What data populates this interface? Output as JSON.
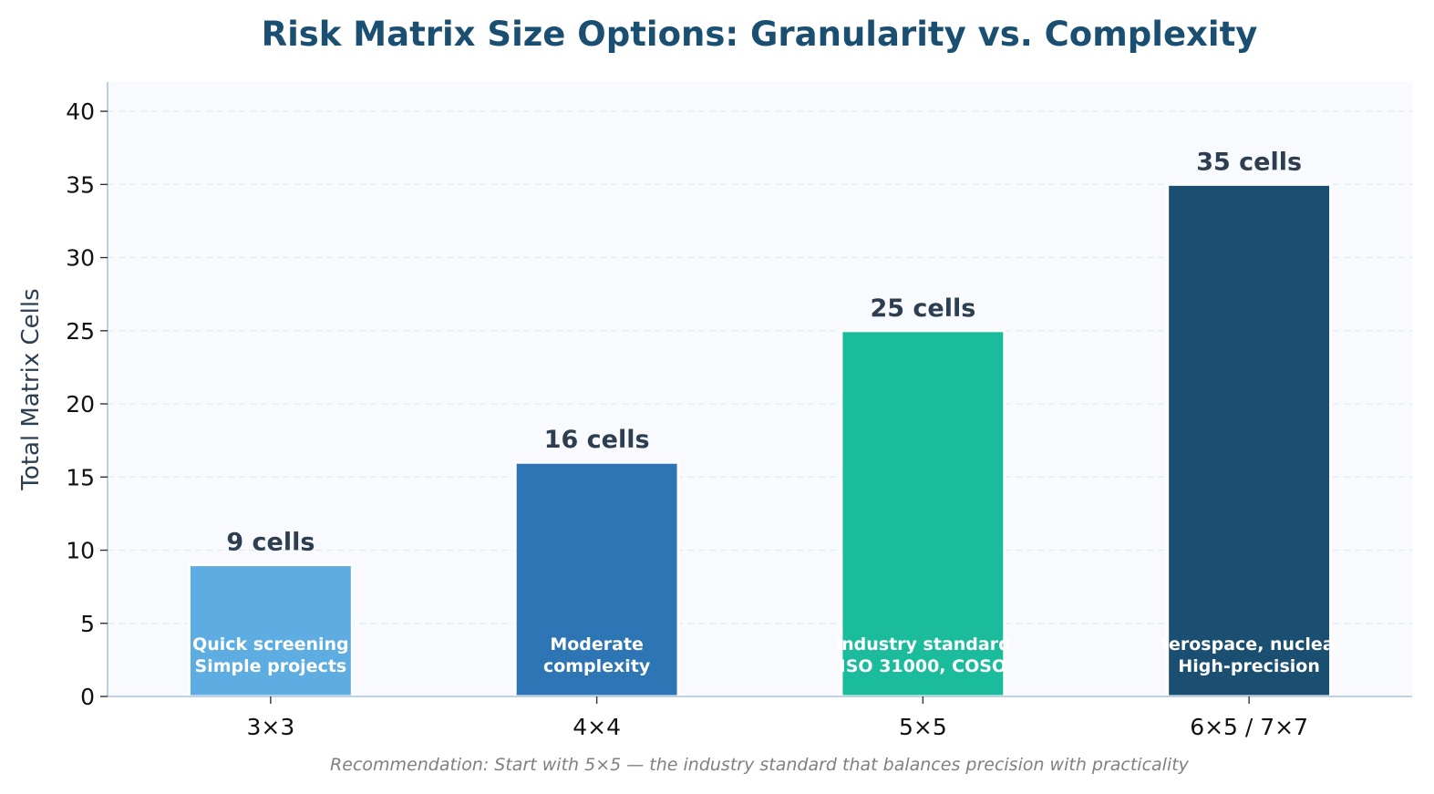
{
  "chart_data": {
    "type": "bar",
    "title": "Risk Matrix Size Options: Granularity vs. Complexity",
    "xlabel": "",
    "ylabel": "Total Matrix Cells",
    "categories": [
      "3×3",
      "4×4",
      "5×5",
      "6×5 / 7×7"
    ],
    "values": [
      9,
      16,
      25,
      35
    ],
    "value_labels": [
      "9 cells",
      "16 cells",
      "25 cells",
      "35 cells"
    ],
    "bar_descriptions": [
      [
        "Quick screening",
        "Simple projects"
      ],
      [
        "Moderate",
        "complexity"
      ],
      [
        "Industry standard",
        "ISO 31000, COSO"
      ],
      [
        "Aerospace, nuclear",
        "High-precision"
      ]
    ],
    "colors": [
      "#5dade2",
      "#2e75b6",
      "#1abc9c",
      "#1b4f72"
    ],
    "ylim": [
      0,
      42
    ],
    "yticks": [
      0,
      5,
      10,
      15,
      20,
      25,
      30,
      35,
      40
    ],
    "grid": true,
    "footnote": "Recommendation: Start with 5×5 — the industry standard that balances precision with practicality"
  }
}
